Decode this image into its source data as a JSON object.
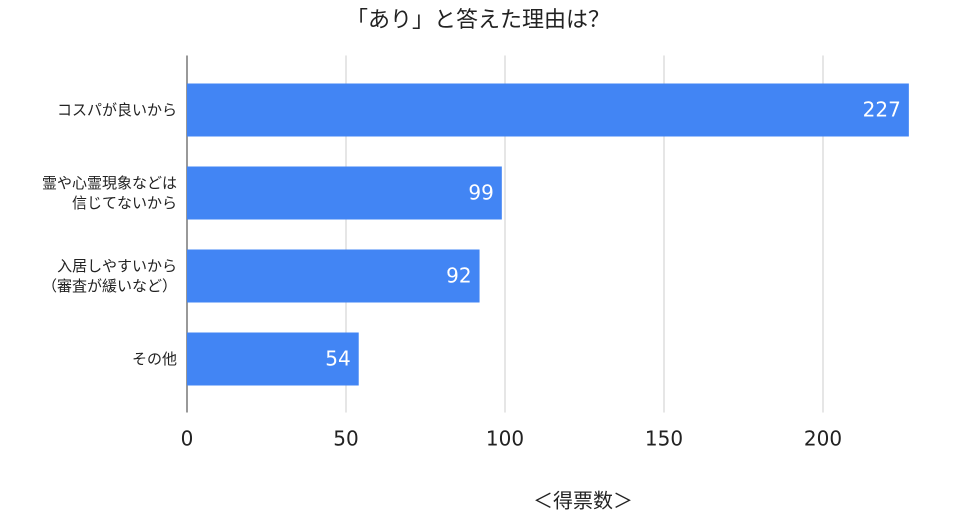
{
  "chart_data": {
    "type": "hbar",
    "title": "「あり」と答えた理由は？",
    "x_label": "＜得票数＞",
    "categories": [
      "コスパが良いから",
      "霊や心霊現象などは\n信じてないから",
      "入居しやすいから\n（審査が緩いなど）",
      "その他"
    ],
    "values": [
      227,
      99,
      92,
      54
    ],
    "color": "#4285f4",
    "xlim": [
      0,
      230
    ],
    "xticks": [
      0,
      50,
      100,
      150,
      200
    ],
    "grid": true
  }
}
